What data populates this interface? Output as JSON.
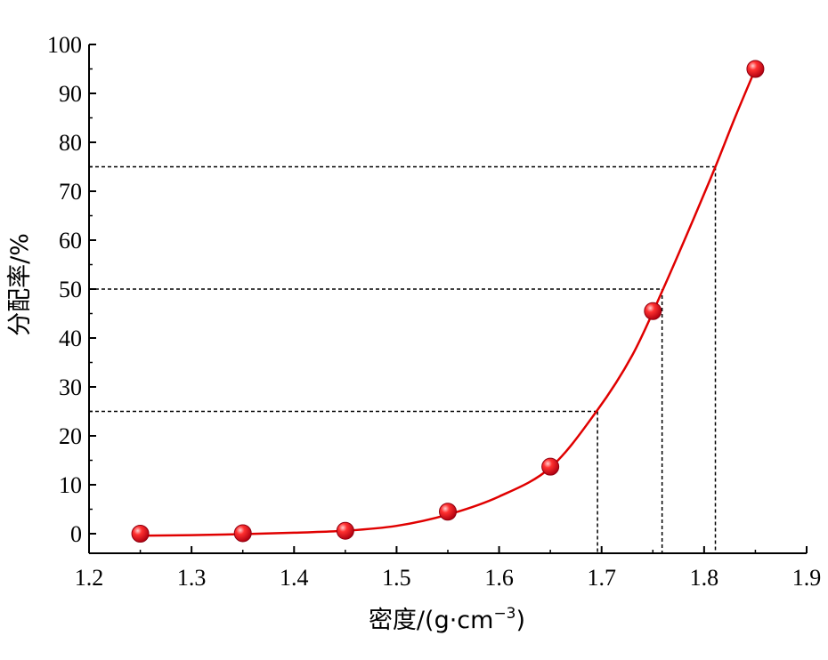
{
  "chart_data": {
    "type": "scatter",
    "xlabel_main": "密度/(g·cm",
    "xlabel_sup": "−3",
    "xlabel_close": ")",
    "ylabel": "分配率/%",
    "xlim": [
      1.2,
      1.9
    ],
    "ylim": [
      -4,
      100
    ],
    "x_ticks": [
      1.2,
      1.3,
      1.4,
      1.5,
      1.6,
      1.7,
      1.8,
      1.9
    ],
    "x_tick_labels": [
      "1.2",
      "1.3",
      "1.4",
      "1.5",
      "1.6",
      "1.7",
      "1.8",
      "1.9"
    ],
    "y_ticks": [
      0,
      10,
      20,
      30,
      40,
      50,
      60,
      70,
      80,
      90,
      100
    ],
    "y_tick_labels": [
      "0",
      "10",
      "20",
      "30",
      "40",
      "50",
      "60",
      "70",
      "80",
      "90",
      "100"
    ],
    "points": [
      {
        "x": 1.25,
        "y": 0.0
      },
      {
        "x": 1.35,
        "y": 0.1
      },
      {
        "x": 1.45,
        "y": 0.6
      },
      {
        "x": 1.55,
        "y": 4.5
      },
      {
        "x": 1.65,
        "y": 13.7
      },
      {
        "x": 1.75,
        "y": 45.5
      },
      {
        "x": 1.85,
        "y": 95.0
      }
    ],
    "fit_curve": [
      {
        "x": 1.25,
        "y": -0.4
      },
      {
        "x": 1.3,
        "y": -0.3
      },
      {
        "x": 1.35,
        "y": -0.1
      },
      {
        "x": 1.4,
        "y": 0.2
      },
      {
        "x": 1.45,
        "y": 0.6
      },
      {
        "x": 1.5,
        "y": 1.6
      },
      {
        "x": 1.55,
        "y": 3.9
      },
      {
        "x": 1.6,
        "y": 7.6
      },
      {
        "x": 1.65,
        "y": 13.5
      },
      {
        "x": 1.695,
        "y": 25.0
      },
      {
        "x": 1.73,
        "y": 36.5
      },
      {
        "x": 1.76,
        "y": 50.0
      },
      {
        "x": 1.79,
        "y": 64.5
      },
      {
        "x": 1.811,
        "y": 75.0
      },
      {
        "x": 1.83,
        "y": 85.0
      },
      {
        "x": 1.85,
        "y": 95.0
      }
    ],
    "reference_lines": [
      {
        "x": 1.696,
        "y": 25
      },
      {
        "x": 1.759,
        "y": 50
      },
      {
        "x": 1.811,
        "y": 75
      }
    ],
    "colors": {
      "curve": "#e00000",
      "marker": "#e01020",
      "reference": "#000000"
    },
    "grid": false,
    "legend": "none"
  }
}
